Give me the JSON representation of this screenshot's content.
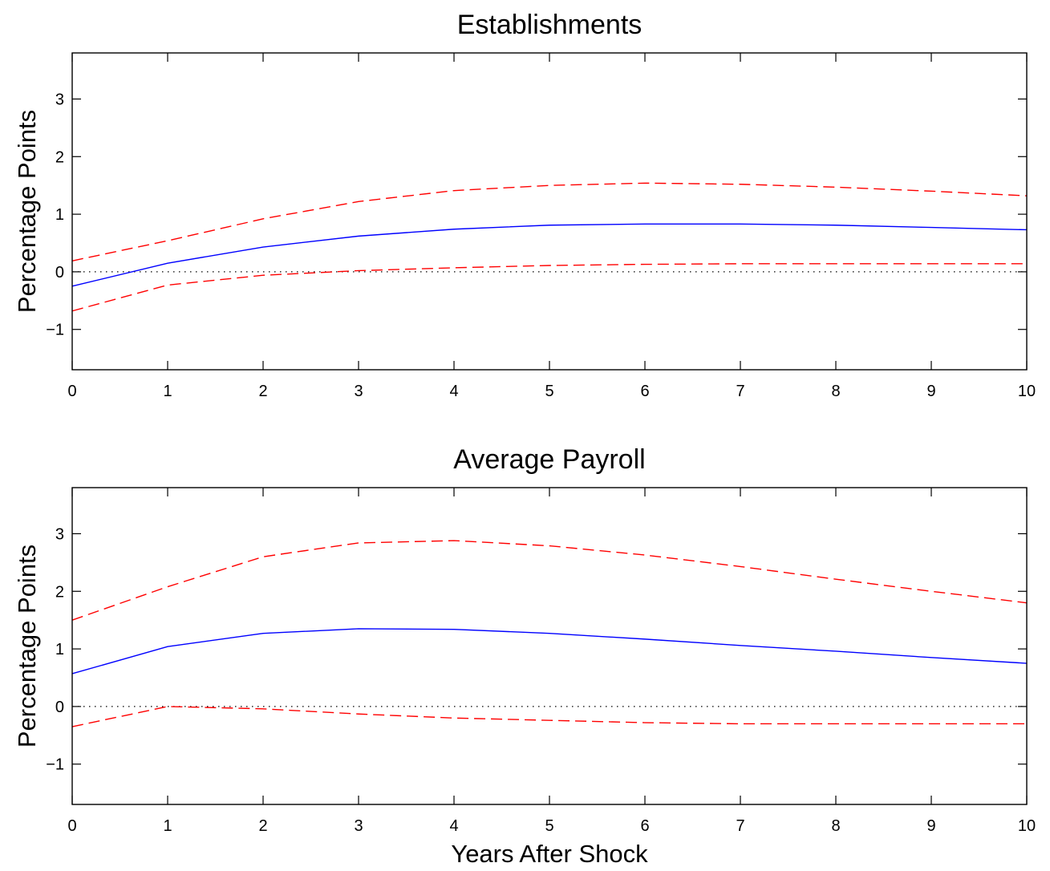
{
  "chart_data": [
    {
      "type": "line",
      "title": "Establishments",
      "xlabel": "",
      "ylabel": "Percentage Points",
      "xlim": [
        0,
        10
      ],
      "ylim": [
        -1.7,
        3.8
      ],
      "xticks": [
        0,
        1,
        2,
        3,
        4,
        5,
        6,
        7,
        8,
        9,
        10
      ],
      "yticks": [
        -1,
        0,
        1,
        2,
        3
      ],
      "x": [
        0,
        1,
        2,
        3,
        4,
        5,
        6,
        7,
        8,
        9,
        10
      ],
      "grid": false,
      "zero_line": true,
      "series": [
        {
          "role": "estimate",
          "style": "solid",
          "color": "#0000ff",
          "values": [
            -0.25,
            0.15,
            0.43,
            0.62,
            0.74,
            0.81,
            0.83,
            0.83,
            0.81,
            0.77,
            0.73
          ]
        },
        {
          "role": "upper-band",
          "style": "dashed",
          "color": "#ff0000",
          "values": [
            0.19,
            0.54,
            0.92,
            1.22,
            1.41,
            1.5,
            1.54,
            1.52,
            1.47,
            1.4,
            1.32
          ]
        },
        {
          "role": "lower-band",
          "style": "dashed",
          "color": "#ff0000",
          "values": [
            -0.68,
            -0.23,
            -0.06,
            0.02,
            0.07,
            0.11,
            0.13,
            0.14,
            0.14,
            0.14,
            0.14
          ]
        }
      ]
    },
    {
      "type": "line",
      "title": "Average Payroll",
      "xlabel": "Years After Shock",
      "ylabel": "Percentage Points",
      "xlim": [
        0,
        10
      ],
      "ylim": [
        -1.7,
        3.8
      ],
      "xticks": [
        0,
        1,
        2,
        3,
        4,
        5,
        6,
        7,
        8,
        9,
        10
      ],
      "yticks": [
        -1,
        0,
        1,
        2,
        3
      ],
      "x": [
        0,
        1,
        2,
        3,
        4,
        5,
        6,
        7,
        8,
        9,
        10
      ],
      "grid": false,
      "zero_line": true,
      "series": [
        {
          "role": "estimate",
          "style": "solid",
          "color": "#0000ff",
          "values": [
            0.57,
            1.04,
            1.27,
            1.35,
            1.34,
            1.27,
            1.17,
            1.06,
            0.96,
            0.85,
            0.75
          ]
        },
        {
          "role": "upper-band",
          "style": "dashed",
          "color": "#ff0000",
          "values": [
            1.5,
            2.08,
            2.6,
            2.84,
            2.88,
            2.79,
            2.63,
            2.43,
            2.21,
            2.0,
            1.8
          ]
        },
        {
          "role": "lower-band",
          "style": "dashed",
          "color": "#ff0000",
          "values": [
            -0.35,
            0.0,
            -0.04,
            -0.13,
            -0.2,
            -0.24,
            -0.28,
            -0.3,
            -0.3,
            -0.3,
            -0.3
          ]
        }
      ]
    }
  ]
}
